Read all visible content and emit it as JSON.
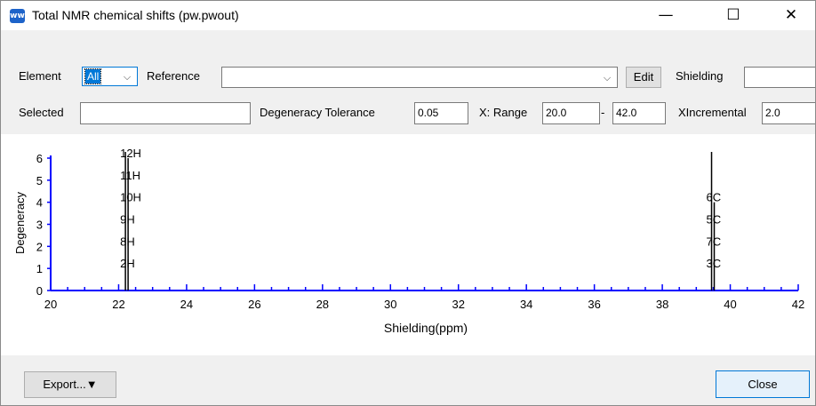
{
  "window": {
    "title": "Total NMR chemical shifts (pw.pwout)",
    "icon_label": "ww",
    "minimize_glyph": "—",
    "maximize_glyph": "☐",
    "close_glyph": "✕"
  },
  "toolbar": {
    "element_label": "Element",
    "element_value": "All",
    "reference_label": "Reference",
    "reference_value": "",
    "edit_button": "Edit",
    "shielding_label": "Shielding",
    "shielding_value": "",
    "selected_label": "Selected",
    "selected_value": "",
    "degeneracy_tolerance_label": "Degeneracy Tolerance",
    "degeneracy_tolerance_value": "0.05",
    "xrange_label": "X: Range",
    "xrange_min": "20.0",
    "xrange_dash": "-",
    "xrange_max": "42.0",
    "xincremental_label": "XIncremental",
    "xincremental_value": "2.0"
  },
  "footer": {
    "export_button": "Export...▼",
    "close_button": "Close"
  },
  "chart_data": {
    "type": "bar",
    "xlabel": "Shielding(ppm)",
    "ylabel": "Degeneracy",
    "xlim": [
      20,
      42
    ],
    "ylim": [
      0,
      6
    ],
    "x_ticks": [
      20,
      22,
      24,
      26,
      28,
      30,
      32,
      34,
      36,
      38,
      40,
      42
    ],
    "y_ticks": [
      0,
      1,
      2,
      3,
      4,
      5,
      6
    ],
    "colors": {
      "axis": "#0000ff",
      "line": "#000000"
    },
    "peaks": [
      {
        "x": 22.2,
        "degeneracy": 6,
        "labels": [
          "2H",
          "8H",
          "9H",
          "10H",
          "11H",
          "12H"
        ]
      },
      {
        "x": 39.45,
        "degeneracy": 4,
        "labels": [
          "3C",
          "7C",
          "5C",
          "6C"
        ]
      }
    ]
  }
}
